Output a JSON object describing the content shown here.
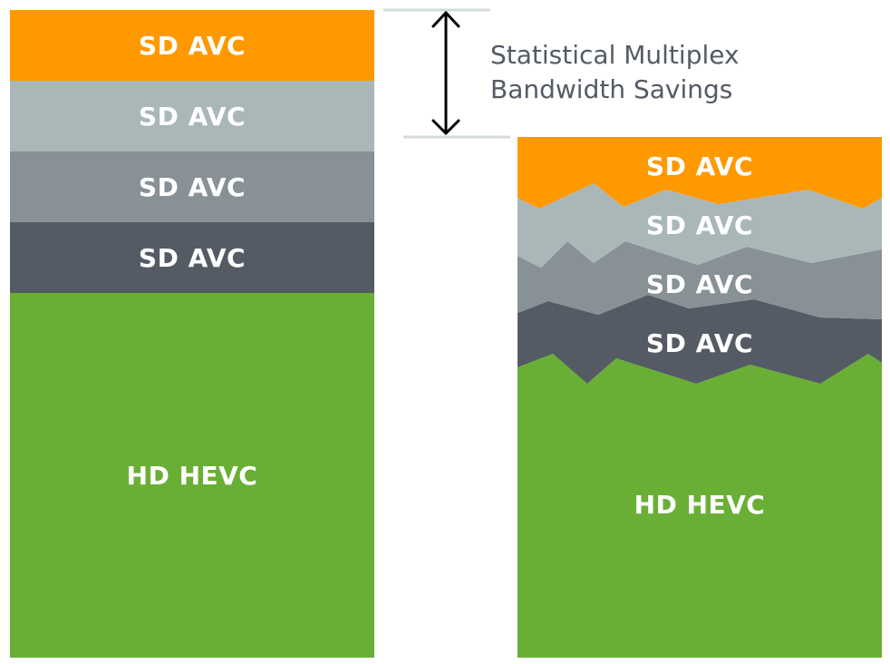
{
  "fixed_stack": {
    "layers": [
      {
        "label": "SD AVC",
        "color": "#ff9900"
      },
      {
        "label": "SD AVC",
        "color": "#aab7b8"
      },
      {
        "label": "SD AVC",
        "color": "#879196"
      },
      {
        "label": "SD AVC",
        "color": "#545b64"
      },
      {
        "label": "HD HEVC",
        "color": "#6aaf35"
      }
    ]
  },
  "savings": {
    "line1": "Statistical Multiplex",
    "line2": "Bandwidth Savings",
    "guide_color": "#d5dbdb"
  },
  "statmux_stack": {
    "layers": [
      {
        "label": "SD AVC",
        "color": "#ff9900"
      },
      {
        "label": "SD AVC",
        "color": "#aab7b8"
      },
      {
        "label": "SD AVC",
        "color": "#879196"
      },
      {
        "label": "SD AVC",
        "color": "#545b64"
      },
      {
        "label": "HD HEVC",
        "color": "#6aaf35"
      }
    ]
  }
}
